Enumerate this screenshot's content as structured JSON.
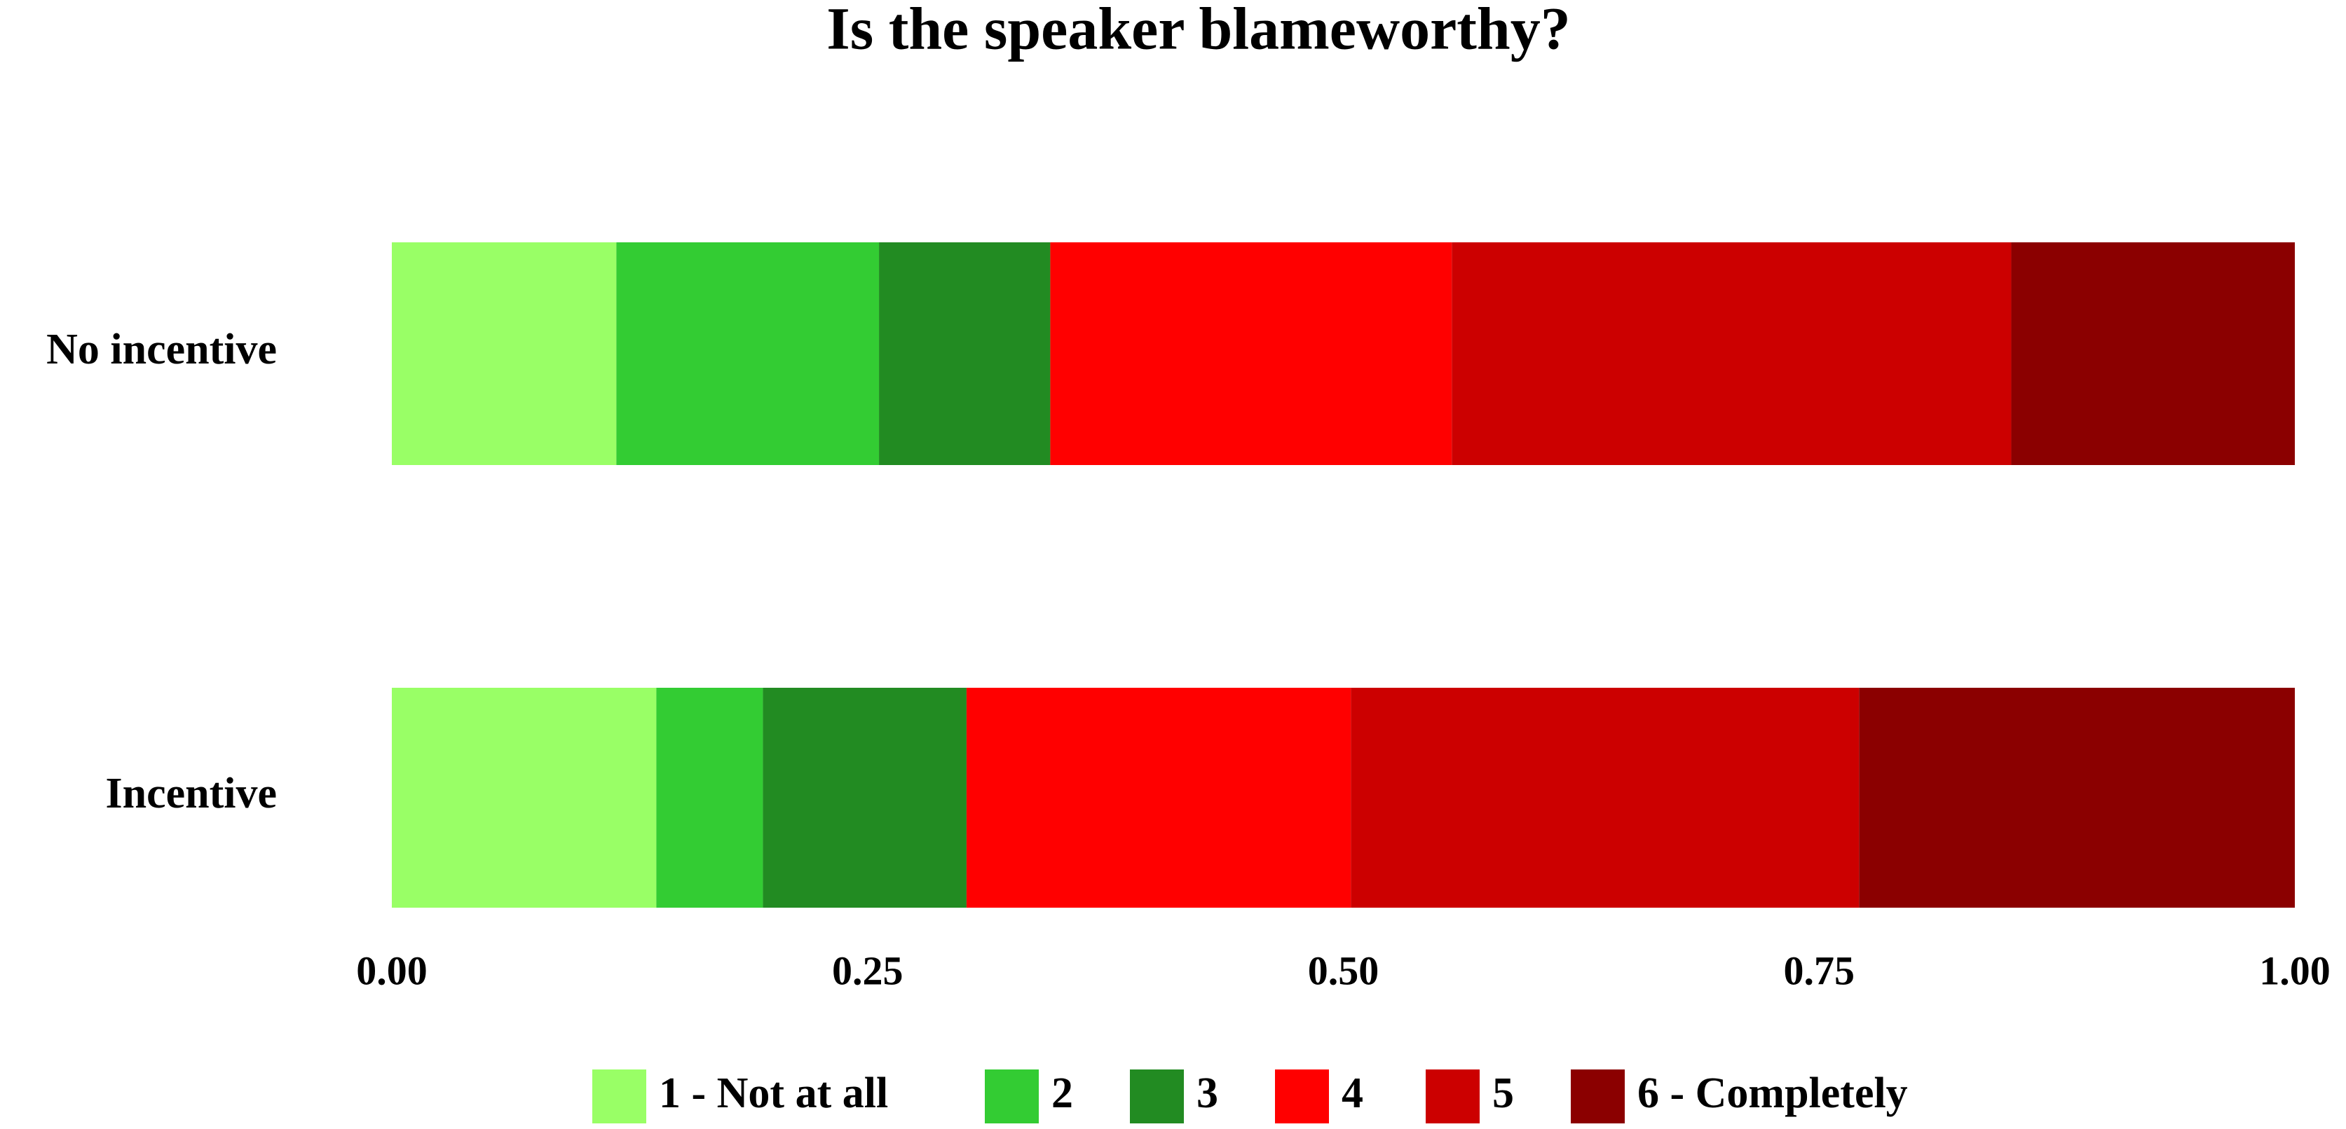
{
  "chart_data": {
    "type": "stacked-barh",
    "title": "Is the speaker blameworthy?",
    "categories": [
      "No incentive",
      "Incentive"
    ],
    "series": [
      {
        "name": "1 - Not at all",
        "color": "#99ff66",
        "values": [
          0.118,
          0.139
        ]
      },
      {
        "name": "2",
        "color": "#33cc33",
        "values": [
          0.138,
          0.056
        ]
      },
      {
        "name": "3",
        "color": "#228b22",
        "values": [
          0.09,
          0.107
        ]
      },
      {
        "name": "4",
        "color": "#ff0000",
        "values": [
          0.211,
          0.202
        ]
      },
      {
        "name": "5",
        "color": "#cc0000",
        "values": [
          0.294,
          0.267
        ]
      },
      {
        "name": "6 - Completely",
        "color": "#8b0000",
        "values": [
          0.149,
          0.229
        ]
      }
    ],
    "xlim": [
      0,
      1
    ],
    "xticks": [
      {
        "value": 0,
        "label": "0.00"
      },
      {
        "value": 0.25,
        "label": "0.25"
      },
      {
        "value": 0.5,
        "label": "0.50"
      },
      {
        "value": 0.75,
        "label": "0.75"
      },
      {
        "value": 1,
        "label": "1.00"
      }
    ],
    "legend": "bottom"
  }
}
